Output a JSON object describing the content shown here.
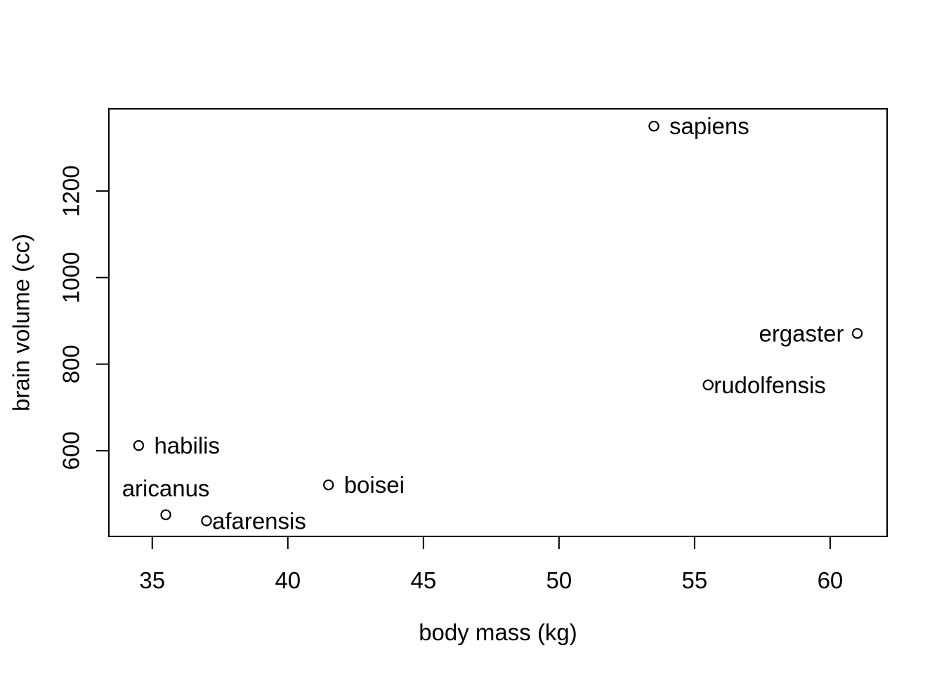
{
  "figure": {
    "background_color": "#ffffff",
    "foreground_color": "#000000"
  },
  "chart_data": {
    "type": "scatter",
    "title": "",
    "xlabel": "body mass (kg)",
    "ylabel": "brain volume (cc)",
    "marker": "open-circle",
    "grid": false,
    "legend": "none",
    "xlim": [
      33.4,
      62.1
    ],
    "ylim": [
      402,
      1390
    ],
    "x_ticks": [
      35,
      40,
      45,
      50,
      55,
      60
    ],
    "y_ticks": [
      600,
      800,
      1000,
      1200
    ],
    "points": [
      {
        "label": "sapiens",
        "x": 53.5,
        "y": 1350,
        "label_side": "right"
      },
      {
        "label": "ergaster",
        "x": 61.0,
        "y": 871,
        "label_side": "left"
      },
      {
        "label": "rudolfensis",
        "x": 55.5,
        "y": 752,
        "label_side": "right-touch"
      },
      {
        "label": "habilis",
        "x": 34.5,
        "y": 612,
        "label_side": "right"
      },
      {
        "label": "aricanus",
        "x": 35.5,
        "y": 452,
        "label_side": "above"
      },
      {
        "label": "afarensis",
        "x": 37.0,
        "y": 438,
        "label_side": "right-touch"
      },
      {
        "label": "boisei",
        "x": 41.5,
        "y": 521,
        "label_side": "right"
      }
    ]
  }
}
